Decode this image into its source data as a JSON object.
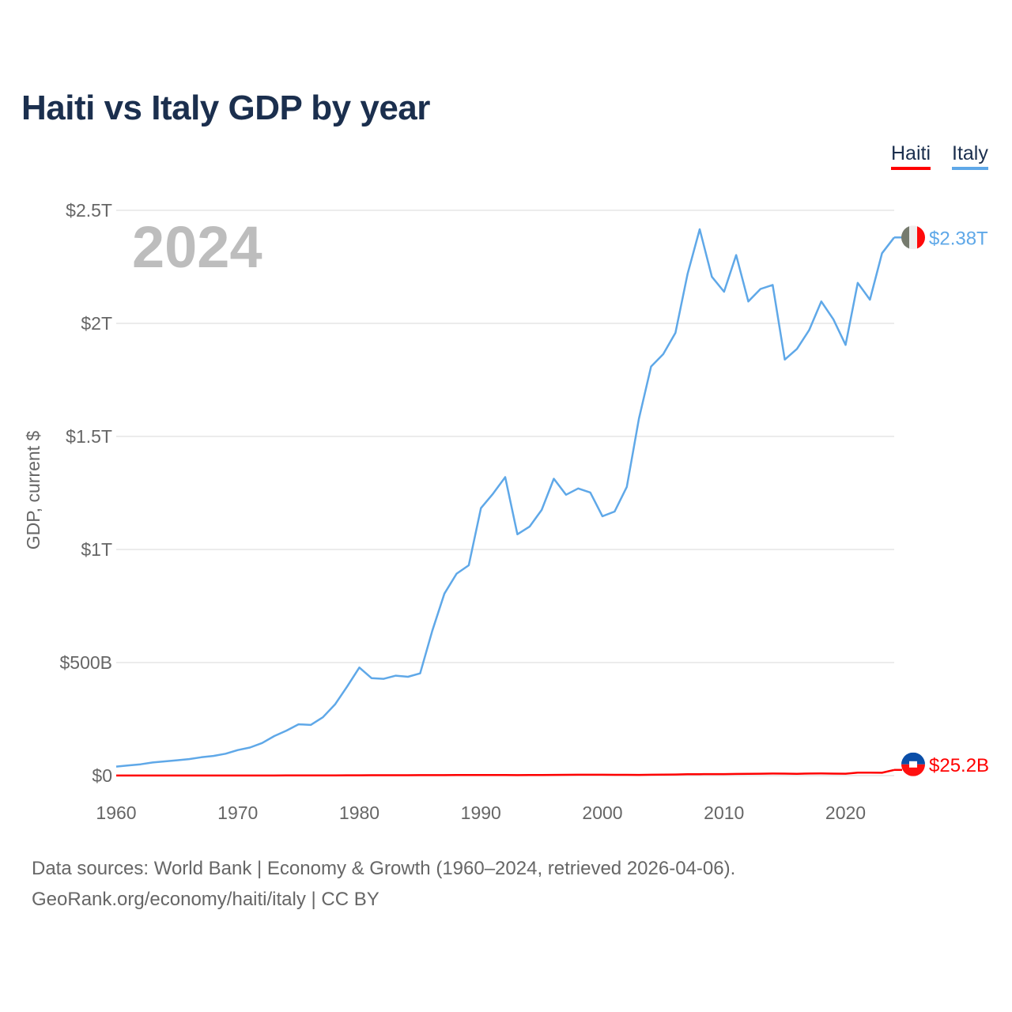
{
  "chart_data": {
    "type": "line",
    "title": "Haiti vs Italy GDP by year",
    "ylabel": "GDP, current $",
    "xlabel": "",
    "year_label": "2024",
    "xlim": [
      1960,
      2024
    ],
    "ylim": [
      0,
      2.5
    ],
    "y_unit": "trillion USD",
    "x_ticks": [
      "1960",
      "1970",
      "1980",
      "1990",
      "2000",
      "2010",
      "2020"
    ],
    "y_ticks": [
      {
        "value": 0,
        "label": "$0"
      },
      {
        "value": 0.5,
        "label": "$500B"
      },
      {
        "value": 1,
        "label": "$1T"
      },
      {
        "value": 1.5,
        "label": "$1.5T"
      },
      {
        "value": 2,
        "label": "$2T"
      },
      {
        "value": 2.5,
        "label": "$2.5T"
      }
    ],
    "grid": true,
    "legend_position": "top-right",
    "x": [
      1960,
      1961,
      1962,
      1963,
      1964,
      1965,
      1966,
      1967,
      1968,
      1969,
      1970,
      1971,
      1972,
      1973,
      1974,
      1975,
      1976,
      1977,
      1978,
      1979,
      1980,
      1981,
      1982,
      1983,
      1984,
      1985,
      1986,
      1987,
      1988,
      1989,
      1990,
      1991,
      1992,
      1993,
      1994,
      1995,
      1996,
      1997,
      1998,
      1999,
      2000,
      2001,
      2002,
      2003,
      2004,
      2005,
      2006,
      2007,
      2008,
      2009,
      2010,
      2011,
      2012,
      2013,
      2014,
      2015,
      2016,
      2017,
      2018,
      2019,
      2020,
      2021,
      2022,
      2023,
      2024
    ],
    "series": [
      {
        "name": "Haiti",
        "color": "#ff0000",
        "end_label": "$25.2B",
        "values": [
          0.0003,
          0.0003,
          0.0003,
          0.0003,
          0.0003,
          0.0003,
          0.0003,
          0.0003,
          0.0003,
          0.0003,
          0.0004,
          0.0004,
          0.0005,
          0.0005,
          0.0006,
          0.0007,
          0.0009,
          0.001,
          0.0012,
          0.0014,
          0.0015,
          0.0016,
          0.0017,
          0.0018,
          0.0019,
          0.002,
          0.0022,
          0.0022,
          0.0023,
          0.0024,
          0.0025,
          0.0028,
          0.0027,
          0.0022,
          0.0024,
          0.0029,
          0.003,
          0.0034,
          0.0037,
          0.004,
          0.0039,
          0.0036,
          0.0034,
          0.003,
          0.0037,
          0.0043,
          0.0048,
          0.0059,
          0.0064,
          0.0066,
          0.0067,
          0.0074,
          0.0078,
          0.0085,
          0.009,
          0.0089,
          0.0082,
          0.009,
          0.0096,
          0.0089,
          0.0085,
          0.0134,
          0.0131,
          0.0127,
          0.0252
        ]
      },
      {
        "name": "Italy",
        "color": "#5fa8e8",
        "end_label": "$2.38T",
        "values": [
          0.04,
          0.045,
          0.05,
          0.058,
          0.063,
          0.068,
          0.073,
          0.081,
          0.087,
          0.097,
          0.113,
          0.124,
          0.144,
          0.175,
          0.199,
          0.227,
          0.224,
          0.258,
          0.315,
          0.394,
          0.478,
          0.431,
          0.428,
          0.442,
          0.437,
          0.452,
          0.641,
          0.805,
          0.893,
          0.93,
          1.183,
          1.247,
          1.32,
          1.067,
          1.101,
          1.175,
          1.313,
          1.242,
          1.27,
          1.252,
          1.147,
          1.168,
          1.277,
          1.578,
          1.809,
          1.864,
          1.958,
          2.218,
          2.416,
          2.206,
          2.14,
          2.302,
          2.097,
          2.152,
          2.17,
          1.84,
          1.887,
          1.97,
          2.097,
          2.018,
          1.905,
          2.179,
          2.105,
          2.31,
          2.38
        ]
      }
    ]
  },
  "legend": {
    "haiti": "Haiti",
    "italy": "Italy"
  },
  "footer": {
    "line1": "Data sources: World Bank | Economy & Growth (1960–2024, retrieved 2026-04-06).",
    "line2": "GeoRank.org/economy/haiti/italy | CC BY"
  }
}
